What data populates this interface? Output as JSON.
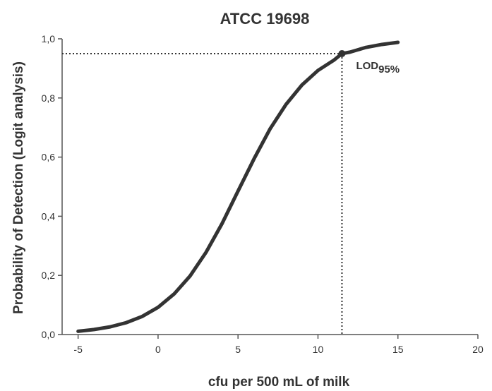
{
  "chart_data": {
    "type": "line",
    "title": "ATCC 19698",
    "xlabel": "cfu per 500 mL of milk",
    "ylabel": "Probability of Detection (Logit analysis)",
    "xlim": [
      -6,
      20
    ],
    "ylim": [
      0,
      1
    ],
    "x_ticks": [
      -5,
      0,
      5,
      10,
      15,
      20
    ],
    "x_tick_labels": [
      "-5",
      "0",
      "5",
      "10",
      "15",
      "20"
    ],
    "y_ticks": [
      0,
      0.2,
      0.4,
      0.6,
      0.8,
      1.0
    ],
    "y_tick_labels": [
      "0,0",
      "0,2",
      "0,4",
      "0,6",
      "0,8",
      "1,0"
    ],
    "grid": false,
    "series": [
      {
        "x": [
          -5,
          -4,
          -3,
          -2,
          -1,
          0,
          1,
          2,
          3,
          4,
          5,
          6,
          7,
          8,
          9,
          10,
          11,
          11.5,
          12,
          13,
          14,
          15
        ],
        "y": [
          0.011,
          0.017,
          0.026,
          0.04,
          0.061,
          0.092,
          0.137,
          0.198,
          0.278,
          0.375,
          0.485,
          0.594,
          0.695,
          0.778,
          0.844,
          0.893,
          0.928,
          0.95,
          0.955,
          0.971,
          0.981,
          0.988
        ]
      }
    ],
    "annotations": [
      {
        "x": 11.5,
        "y": 0.95,
        "label_main": "LOD",
        "label_sub": "95%"
      }
    ],
    "colors": {
      "curve": "#333333",
      "axis": "#555555",
      "text": "#333333"
    }
  }
}
